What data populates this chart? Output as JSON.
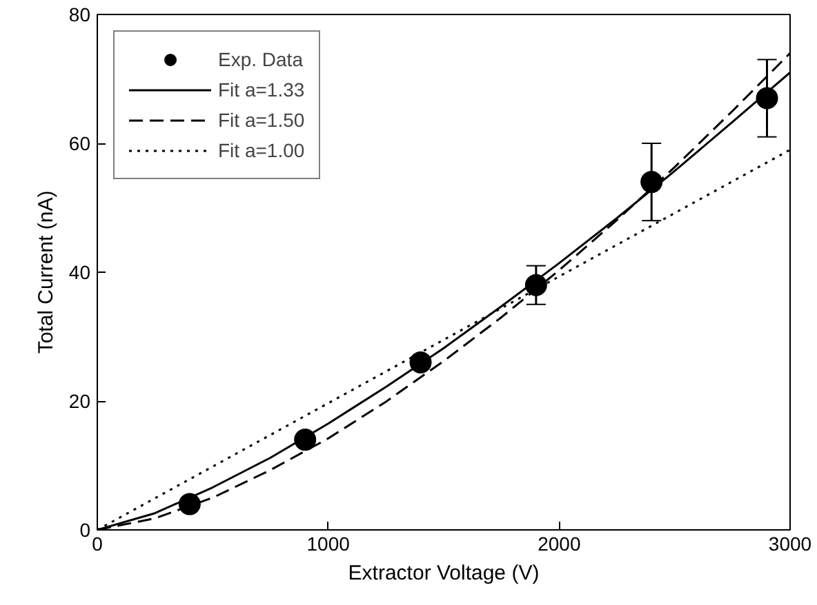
{
  "chart_data": {
    "type": "scatter",
    "xlabel": "Extractor Voltage (V)",
    "ylabel": "Total Current (nA)",
    "xlim": [
      0,
      3000
    ],
    "xticks": [
      0,
      1000,
      2000,
      3000
    ],
    "ylim": [
      0,
      80
    ],
    "yticks": [
      0,
      20,
      40,
      60,
      80
    ],
    "grid": false,
    "legend": "top left",
    "series": [
      {
        "name": "Exp. Data",
        "marker": "circle",
        "color": "#000000",
        "x": [
          400,
          900,
          1400,
          1900,
          2400,
          2900
        ],
        "values": [
          4,
          14,
          26,
          38,
          54,
          67
        ],
        "errors": [
          null,
          null,
          null,
          [
            35,
            41
          ],
          [
            48,
            60
          ],
          [
            61,
            73
          ]
        ]
      },
      {
        "name": "Fit a=1.33",
        "type": "line",
        "line_style": "solid",
        "color": "#000000",
        "x": [
          0,
          250,
          500,
          750,
          1000,
          1250,
          1500,
          1750,
          2000,
          2250,
          2500,
          2750,
          3000
        ],
        "values": [
          0,
          2.6,
          6.6,
          11.2,
          16.5,
          22.2,
          28.2,
          34.7,
          41.4,
          48.4,
          55.7,
          63.3,
          71
        ]
      },
      {
        "name": "Fit a=1.50",
        "type": "line",
        "line_style": "dashed",
        "color": "#000000",
        "x": [
          0,
          250,
          500,
          750,
          1000,
          1250,
          1500,
          1750,
          2000,
          2250,
          2500,
          2750,
          3000
        ],
        "values": [
          0,
          1.8,
          5.0,
          9.3,
          14.2,
          19.9,
          26.2,
          33.0,
          40.3,
          48.1,
          56.3,
          65.0,
          74
        ]
      },
      {
        "name": "Fit a=1.00",
        "type": "line",
        "line_style": "dotted",
        "color": "#000000",
        "x": [
          0,
          3000
        ],
        "values": [
          0,
          59
        ]
      }
    ]
  }
}
